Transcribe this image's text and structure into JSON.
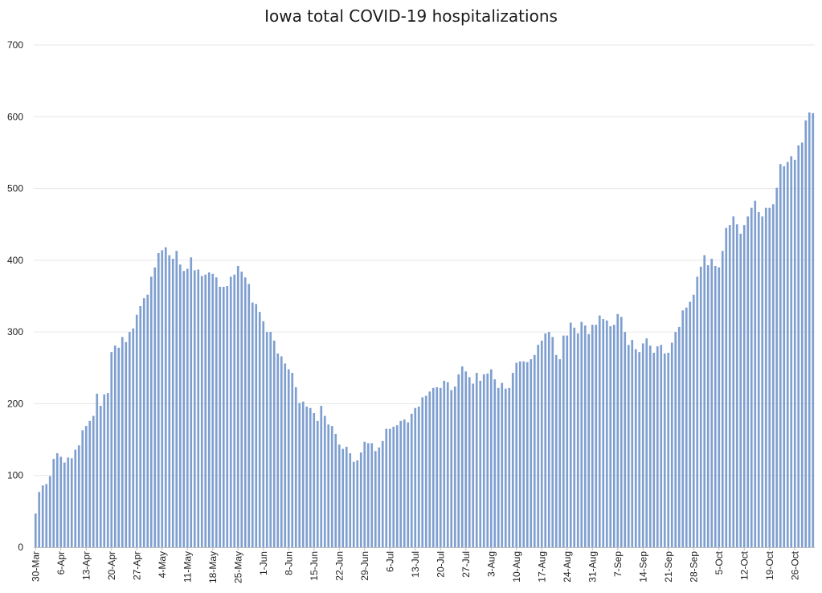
{
  "chart_data": {
    "type": "bar",
    "title": "Iowa total COVID-19 hospitalizations",
    "xlabel": "",
    "ylabel": "",
    "ylim": [
      0,
      700
    ],
    "yticks": [
      0,
      100,
      200,
      300,
      400,
      500,
      600,
      700
    ],
    "grid": true,
    "legend": "none",
    "bar_color": "#7f9fd0",
    "x_tick_labels": [
      "30-Mar",
      "6-Apr",
      "13-Apr",
      "20-Apr",
      "27-Apr",
      "4-May",
      "11-May",
      "18-May",
      "25-May",
      "1-Jun",
      "8-Jun",
      "15-Jun",
      "22-Jun",
      "29-Jun",
      "6-Jul",
      "13-Jul",
      "20-Jul",
      "27-Jul",
      "3-Aug",
      "10-Aug",
      "17-Aug",
      "24-Aug",
      "31-Aug",
      "7-Sep",
      "14-Sep",
      "21-Sep",
      "28-Sep",
      "5-Oct",
      "12-Oct",
      "19-Oct",
      "26-Oct"
    ],
    "tick_every_n_days": 7,
    "start_label": "30-Mar",
    "values": [
      47,
      77,
      86,
      88,
      99,
      123,
      131,
      126,
      118,
      125,
      124,
      136,
      142,
      163,
      169,
      176,
      183,
      214,
      197,
      213,
      215,
      272,
      281,
      278,
      293,
      286,
      300,
      305,
      324,
      336,
      347,
      352,
      377,
      390,
      410,
      414,
      418,
      407,
      402,
      413,
      394,
      385,
      388,
      404,
      386,
      387,
      378,
      380,
      383,
      381,
      376,
      363,
      363,
      364,
      377,
      380,
      392,
      384,
      376,
      367,
      341,
      339,
      328,
      315,
      300,
      300,
      288,
      270,
      266,
      256,
      248,
      243,
      223,
      201,
      203,
      196,
      194,
      187,
      176,
      197,
      183,
      171,
      169,
      158,
      143,
      137,
      140,
      131,
      119,
      121,
      132,
      147,
      145,
      145,
      134,
      139,
      148,
      165,
      165,
      168,
      170,
      176,
      178,
      174,
      186,
      194,
      196,
      209,
      211,
      217,
      222,
      223,
      222,
      232,
      230,
      219,
      224,
      241,
      252,
      245,
      237,
      228,
      243,
      232,
      241,
      242,
      248,
      234,
      222,
      229,
      221,
      222,
      243,
      257,
      259,
      259,
      258,
      262,
      268,
      282,
      288,
      298,
      300,
      293,
      268,
      262,
      295,
      295,
      313,
      306,
      298,
      314,
      309,
      297,
      310,
      310,
      323,
      318,
      316,
      308,
      310,
      325,
      321,
      300,
      282,
      289,
      276,
      272,
      284,
      291,
      281,
      271,
      280,
      282,
      270,
      271,
      285,
      300,
      307,
      330,
      334,
      342,
      352,
      377,
      391,
      407,
      393,
      402,
      392,
      390,
      413,
      445,
      449,
      461,
      450,
      437,
      449,
      461,
      473,
      483,
      467,
      461,
      473,
      473,
      478,
      501,
      534,
      531,
      537,
      545,
      540,
      560,
      564,
      595,
      606,
      605
    ]
  }
}
